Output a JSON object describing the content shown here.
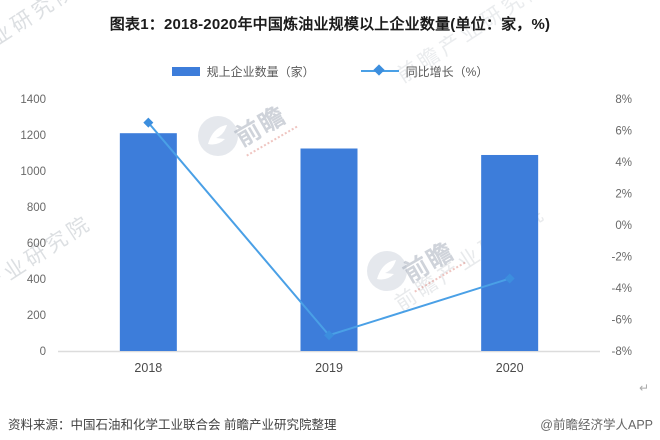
{
  "title": "图表1：2018-2020年中国炼油业规模以上企业数量(单位：家，%)",
  "chart_data": {
    "type": "combo",
    "categories": [
      "2018",
      "2019",
      "2020"
    ],
    "series": [
      {
        "name": "规上企业数量（家）",
        "type": "bar",
        "axis": "left",
        "color": "#3d7dda",
        "values": [
          1210,
          1125,
          1089
        ]
      },
      {
        "name": "同比增长（%）",
        "type": "line",
        "axis": "right",
        "color": "#4aa0e6",
        "marker": "diamond",
        "marker_color": "#3c8ede",
        "values": [
          6.5,
          -7.0,
          -3.4
        ]
      }
    ],
    "left_axis": {
      "min": 0,
      "max": 1400,
      "step": 200,
      "suffix": ""
    },
    "right_axis": {
      "min": -8,
      "max": 8,
      "step": 2,
      "suffix": "%"
    },
    "grid": false,
    "legend_position": "top",
    "axis_line_color": "#dcdcdc",
    "tick_color": "#696969",
    "category_color": "#4a4a4a"
  },
  "footer": {
    "source": "资料来源：中国石油和化学工业联合会 前瞻产业研究院整理",
    "credit": "@前瞻经济学人APP",
    "return_mark": "↵"
  },
  "watermark": {
    "text": "前瞻产业研究院",
    "brand": "前瞻"
  }
}
